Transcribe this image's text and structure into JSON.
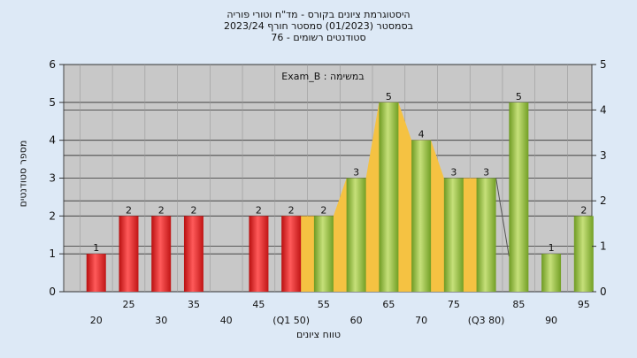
{
  "header": {
    "title_line1": "היסטוגרמת ציונים בקורס - מד\"ח וטורי פוריה",
    "title_line2": "בסמסטר  (01/2023)  סמסטר חורף 2023/24",
    "title_line3": "סטודנטים רשומים - 76"
  },
  "chart_data": {
    "type": "bar",
    "annotation": "במשימה : Exam_B",
    "ylabel": "מספר סטודנטים",
    "xlabel": "טווח ציונים",
    "ylim": [
      0,
      6
    ],
    "y_ticks": [
      0,
      1,
      2,
      3,
      4,
      5,
      6
    ],
    "right_ylim": [
      0,
      5
    ],
    "right_ticks": [
      0,
      1,
      2,
      3,
      4,
      5
    ],
    "x_tick_labels": [
      "20",
      "25",
      "30",
      "35",
      "40",
      "45",
      "(Q1 50)",
      "55",
      "60",
      "65",
      "70",
      "75",
      "(Q3 80)",
      "85",
      "90",
      "95"
    ],
    "x": [
      20,
      25,
      30,
      35,
      40,
      45,
      50,
      55,
      60,
      65,
      70,
      75,
      80,
      85,
      90,
      95
    ],
    "values": [
      1,
      2,
      2,
      2,
      0,
      2,
      2,
      2,
      3,
      5,
      4,
      3,
      3,
      5,
      1,
      2
    ],
    "value_labels": [
      "1",
      "2",
      "2",
      "2",
      "",
      "2",
      "2",
      "2",
      "3",
      "5",
      "4",
      "3",
      "3",
      "5",
      "1",
      "2"
    ],
    "bar_color_below_q1": "#e02020",
    "bar_color_above_q1": "#8cb83c",
    "band_color": "#f5c242",
    "background_color": "#c8c8c8",
    "grid": true
  }
}
